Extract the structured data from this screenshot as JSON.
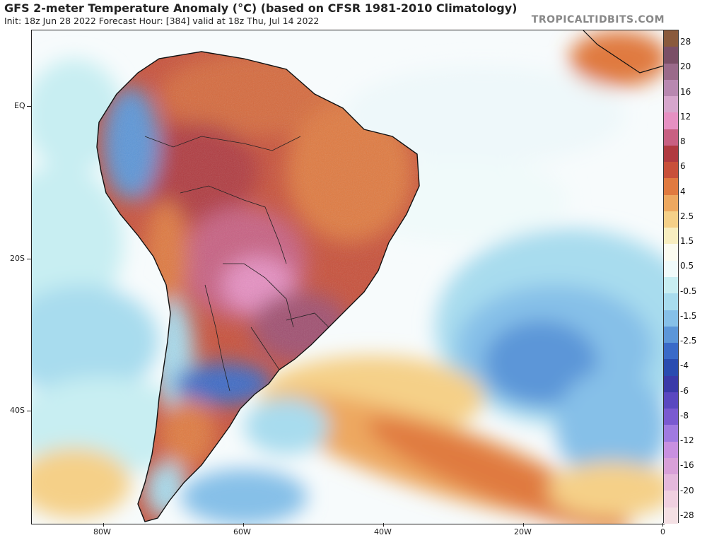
{
  "header": {
    "title": "GFS 2-meter Temperature Anomaly (°C) (based on CFSR 1981-2010 Climatology)",
    "subtitle": "Init: 18z Jun 28 2022   Forecast Hour: [384]   valid at 18z Thu, Jul 14 2022",
    "brand": "TROPICALTIDBITS.COM"
  },
  "map": {
    "latitude_labels": [
      "EQ",
      "20S",
      "40S"
    ],
    "longitude_labels": [
      "80W",
      "60W",
      "40W",
      "20W",
      "0"
    ]
  },
  "colorbar": {
    "labels": [
      "28",
      "20",
      "16",
      "12",
      "8",
      "6",
      "4",
      "2.5",
      "1.5",
      "0.5",
      "-0.5",
      "-1.5",
      "-2.5",
      "-4",
      "-6",
      "-8",
      "-12",
      "-16",
      "-20",
      "-28"
    ],
    "colors": [
      "#8a5a3c",
      "#7a4f66",
      "#9a6a8a",
      "#b888b0",
      "#d6a6cc",
      "#e690c2",
      "#c86082",
      "#b03a40",
      "#c8503a",
      "#e07a40",
      "#eda860",
      "#f5d088",
      "#f8eec0",
      "#fbfbf0",
      "#f0fafa",
      "#c8eef2",
      "#a8dcee",
      "#86c0e8",
      "#5c96d8",
      "#3a6ac8",
      "#2a4cb0",
      "#3a3aa8",
      "#5a48c0",
      "#7a5ad0",
      "#a07ae0",
      "#c890e0",
      "#d8a0d8",
      "#e4b8dc",
      "#f0d0e0",
      "#f4e0e4"
    ]
  }
}
